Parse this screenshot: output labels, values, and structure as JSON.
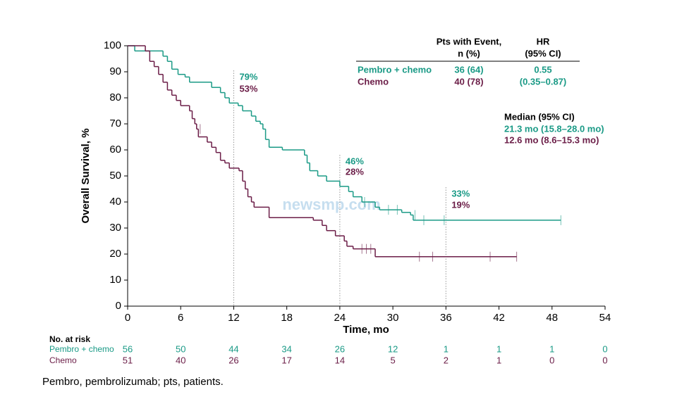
{
  "chart_data": {
    "type": "line",
    "step": true,
    "xlabel": "Time, mo",
    "ylabel": "Overall Survival, %",
    "xlim": [
      0,
      54
    ],
    "xticks": [
      0,
      6,
      12,
      18,
      24,
      30,
      36,
      42,
      48,
      54
    ],
    "ylim": [
      0,
      100
    ],
    "yticks": [
      0,
      10,
      20,
      30,
      40,
      50,
      60,
      70,
      80,
      90,
      100
    ],
    "series": [
      {
        "name": "Pembro + chemo",
        "color": "#1a9a86",
        "x": [
          0,
          0.8,
          4,
          4.5,
          5,
          5.7,
          6.5,
          7,
          9.5,
          10.5,
          11,
          11.5,
          12.5,
          13,
          14,
          14.5,
          15,
          15.3,
          15.6,
          16,
          17.5,
          20,
          20.3,
          20.6,
          21.5,
          22.5,
          24,
          25,
          25.5,
          26.5,
          28,
          28.5,
          31,
          32,
          32.3,
          49
        ],
        "values": [
          100,
          98,
          96,
          94,
          91,
          89,
          88,
          86,
          84,
          82,
          80,
          78,
          77,
          75,
          73,
          71,
          70,
          68,
          64,
          61,
          60,
          58,
          55,
          52,
          50,
          48,
          46,
          44,
          42,
          40,
          38,
          37,
          36,
          35,
          33,
          33
        ],
        "censor_x": [
          26.8,
          29.5,
          30.5,
          32.5,
          33.5,
          35.8,
          49
        ],
        "censor_values": [
          40,
          37,
          37,
          35,
          33,
          33,
          33
        ]
      },
      {
        "name": "Chemo",
        "color": "#6b1d47",
        "x": [
          0,
          2,
          2.5,
          3,
          3.5,
          4,
          4.5,
          5,
          5.5,
          6,
          7,
          7.3,
          7.6,
          7.8,
          8,
          9,
          9.5,
          10,
          10.5,
          11,
          11.5,
          12.6,
          13,
          13.3,
          13.6,
          14,
          14.3,
          16,
          21,
          22,
          22.5,
          23.5,
          24.5,
          24.8,
          25.5,
          28,
          44
        ],
        "values": [
          100,
          98,
          94,
          92,
          89,
          86,
          83,
          81,
          79,
          77,
          75,
          72,
          70,
          68,
          65,
          63,
          61,
          59,
          56,
          55,
          53,
          52,
          48,
          45,
          42,
          40,
          38,
          34,
          33,
          31,
          29,
          27,
          25,
          23,
          22,
          19,
          19
        ],
        "censor_x": [
          8.2,
          26.5,
          27,
          27.5,
          33,
          34.5,
          41,
          44
        ],
        "censor_values": [
          68,
          22,
          22,
          22,
          19,
          19,
          19,
          19
        ]
      }
    ],
    "landmarks": [
      {
        "x": 12,
        "labels": [
          "79%",
          "53%"
        ]
      },
      {
        "x": 24,
        "labels": [
          "46%",
          "28%"
        ]
      },
      {
        "x": 36,
        "labels": [
          "33%",
          "19%"
        ]
      }
    ],
    "event_table": {
      "headers": [
        [
          "Pts with Event,",
          "n (%)"
        ],
        [
          "HR",
          "(95% CI)"
        ]
      ],
      "events": [
        "36 (64)",
        "40 (78)"
      ],
      "hr": [
        "0.55",
        "(0.35–0.87)"
      ]
    },
    "median": {
      "title": "Median (95% CI)",
      "rows": [
        "21.3 mo (15.8–28.0 mo)",
        "12.6 mo (8.6–15.3 mo)"
      ]
    },
    "risk_table": {
      "title": "No. at risk",
      "counts": [
        [
          "56",
          "50",
          "44",
          "34",
          "26",
          "12",
          "1",
          "1",
          "1",
          "0"
        ],
        [
          "51",
          "40",
          "26",
          "17",
          "14",
          "5",
          "2",
          "1",
          "0",
          "0"
        ]
      ]
    },
    "watermark": "newsmp.com",
    "footnote": "Pembro, pembrolizumab; pts, patients."
  }
}
